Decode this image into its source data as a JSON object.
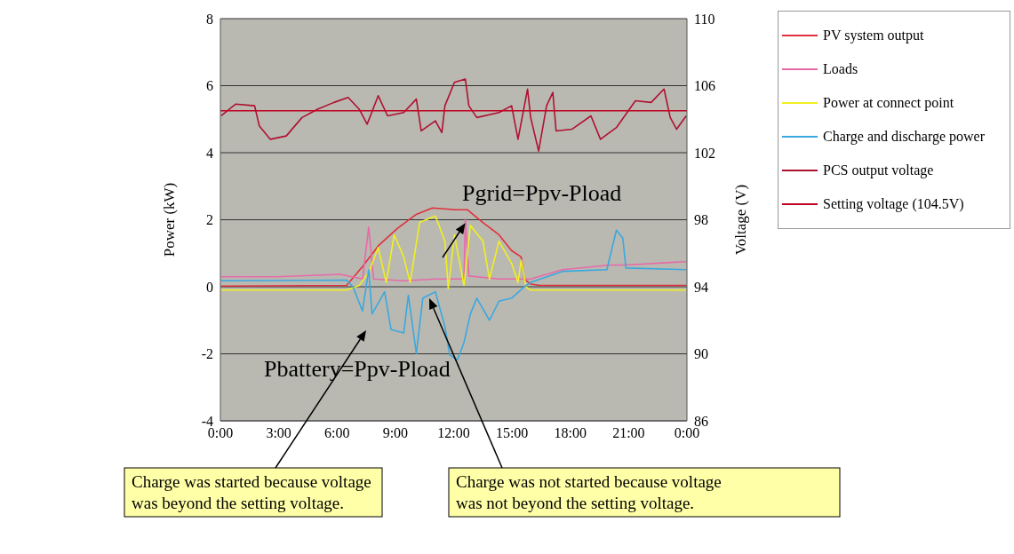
{
  "chart_data": {
    "type": "line",
    "ylabel": "Power (kW)",
    "y2label": "Voltage (V)",
    "xlim": [
      0,
      24
    ],
    "xticks": [
      {
        "value": 0,
        "label": "0:00"
      },
      {
        "value": 3,
        "label": "3:00"
      },
      {
        "value": 6,
        "label": "6:00"
      },
      {
        "value": 9,
        "label": "9:00"
      },
      {
        "value": 12,
        "label": "12:00"
      },
      {
        "value": 15,
        "label": "15:00"
      },
      {
        "value": 18,
        "label": "18:00"
      },
      {
        "value": 21,
        "label": "21:00"
      },
      {
        "value": 24,
        "label": "0:00"
      }
    ],
    "ylim": [
      -4,
      8
    ],
    "yticks": [
      -4,
      -2,
      0,
      2,
      4,
      6,
      8
    ],
    "y2lim": [
      86,
      110
    ],
    "y2ticks": [
      86,
      90,
      94,
      98,
      102,
      106,
      110
    ],
    "grid": "y",
    "legend": "right",
    "marker": "none",
    "line_style": "solid",
    "series": [
      {
        "name": "PV system output",
        "color": "#e0303a",
        "x": [
          0.04,
          6.49,
          7.31,
          8.12,
          9.1,
          10.08,
          10.9,
          12.04,
          12.7,
          13.5,
          14.33,
          14.98,
          15.47,
          15.63,
          15.96,
          16.45,
          23.96
        ],
        "values": [
          0.02,
          0.04,
          0.6,
          1.22,
          1.74,
          2.16,
          2.35,
          2.3,
          2.3,
          1.92,
          1.55,
          1.08,
          0.89,
          0.23,
          0.08,
          0.04,
          0.04
        ]
      },
      {
        "name": "Loads",
        "color": "#e86aa8",
        "x": [
          0.04,
          2.9,
          6.17,
          7.31,
          7.63,
          7.88,
          9.43,
          11.06,
          12.53,
          12.6,
          12.78,
          14.33,
          15.96,
          17.6,
          20.05,
          20.86,
          23.96
        ],
        "values": [
          0.3,
          0.3,
          0.37,
          0.23,
          1.78,
          0.23,
          0.18,
          0.23,
          0.23,
          2.02,
          0.32,
          0.23,
          0.23,
          0.51,
          0.65,
          0.65,
          0.75
        ]
      },
      {
        "name": "Power at connect point",
        "color": "#f0f020",
        "x": [
          0.04,
          6.49,
          7.14,
          7.63,
          8.12,
          8.53,
          8.94,
          9.43,
          9.76,
          10.25,
          11.06,
          11.55,
          11.72,
          12.04,
          12.53,
          12.86,
          13.51,
          13.84,
          14.33,
          14.98,
          15.31,
          15.47,
          15.72,
          15.96,
          23.96
        ],
        "values": [
          -0.1,
          -0.1,
          0.04,
          0.42,
          1.17,
          0.13,
          1.55,
          0.89,
          0.13,
          1.92,
          2.11,
          1.36,
          -0.06,
          1.55,
          0.04,
          1.83,
          1.36,
          0.23,
          1.36,
          0.7,
          0.13,
          0.79,
          0,
          -0.1,
          -0.1
        ]
      },
      {
        "name": "Charge and discharge power",
        "color": "#3aa8e0",
        "x": [
          0.04,
          6.49,
          6.82,
          7.31,
          7.63,
          7.8,
          8.45,
          8.78,
          9.43,
          9.67,
          10.08,
          10.41,
          11.06,
          11.55,
          11.8,
          12.2,
          12.53,
          12.86,
          13.19,
          13.84,
          14.33,
          14.98,
          15.63,
          15.96,
          17.6,
          19.88,
          20.37,
          20.7,
          20.86,
          23.96
        ],
        "values": [
          0.18,
          0.2,
          0,
          -0.72,
          0.51,
          -0.81,
          -0.15,
          -1.28,
          -1.38,
          -0.25,
          -1.99,
          -0.34,
          -0.15,
          -1.19,
          -2.04,
          -2.18,
          -1.66,
          -0.81,
          -0.34,
          -1.0,
          -0.43,
          -0.34,
          0,
          0.13,
          0.46,
          0.51,
          1.69,
          1.45,
          0.56,
          0.51
        ]
      },
      {
        "name": "PCS output voltage",
        "color": "#b01030",
        "axis": "y2",
        "x": [
          0.04,
          0.78,
          1.76,
          2.0,
          2.57,
          3.39,
          4.2,
          5.0,
          5.84,
          6.57,
          7.14,
          7.55,
          8.12,
          8.6,
          9.43,
          10.08,
          10.33,
          11.06,
          11.39,
          11.55,
          12.04,
          12.6,
          12.78,
          13.19,
          14.33,
          14.98,
          15.31,
          15.8,
          15.96,
          16.37,
          16.78,
          17.1,
          17.27,
          18.08,
          19.06,
          19.55,
          20.37,
          21.35,
          22.16,
          22.82,
          23.14,
          23.47,
          23.96
        ],
        "values": [
          104.2,
          104.9,
          104.8,
          103.6,
          102.8,
          103.0,
          104.1,
          104.6,
          105.0,
          105.3,
          104.6,
          103.7,
          105.4,
          104.2,
          104.4,
          105.2,
          103.3,
          103.9,
          103.2,
          104.8,
          106.2,
          106.4,
          104.8,
          104.1,
          104.4,
          104.8,
          102.8,
          105.8,
          104.1,
          102.1,
          104.8,
          105.6,
          103.3,
          103.4,
          104.2,
          102.8,
          103.5,
          105.1,
          105.0,
          105.8,
          104.1,
          103.4,
          104.2
        ]
      },
      {
        "name": "Setting voltage (104.5V)",
        "color": "#c00020",
        "axis": "y2",
        "x": [
          0,
          24
        ],
        "values": [
          104.5,
          104.5
        ]
      }
    ],
    "annotations": [
      {
        "text": "Pgrid=Ppv-Pload",
        "x": 12.6,
        "y": 1.9
      },
      "Pbattery=Ppv-Pload",
      "Charge was started because voltage was beyond the setting voltage.",
      "Charge was not started because voltage was not beyond the setting voltage."
    ]
  }
}
